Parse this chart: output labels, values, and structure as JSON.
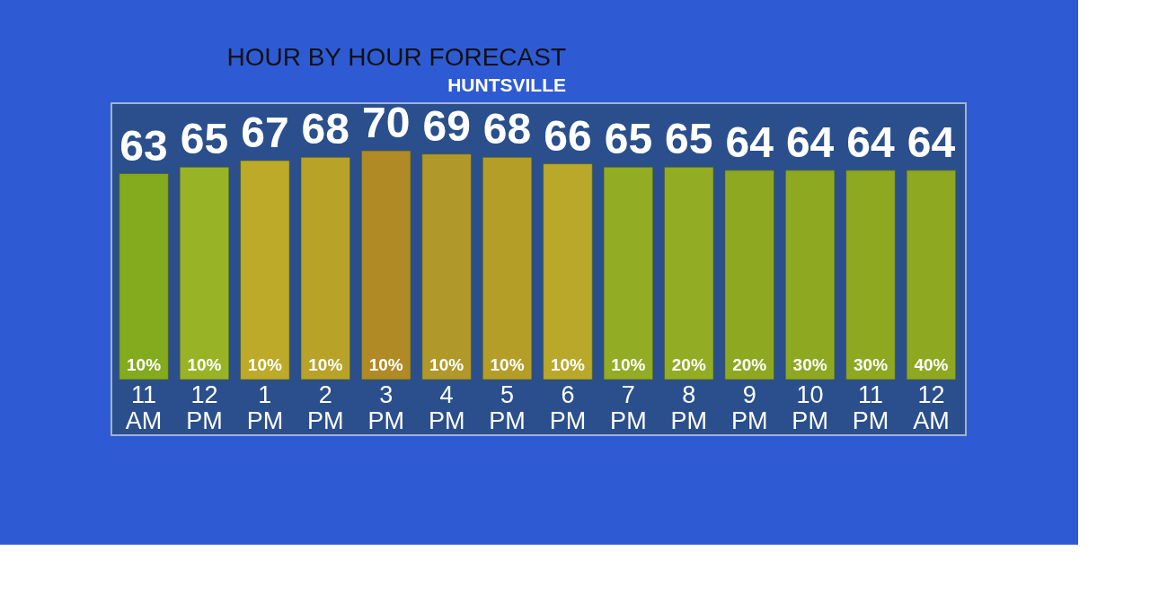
{
  "chart_data": {
    "type": "bar",
    "title": "HOUR BY HOUR FORECAST",
    "subtitle": "HUNTSVILLE",
    "categories": [
      "11 AM",
      "12 PM",
      "1 PM",
      "2 PM",
      "3 PM",
      "4 PM",
      "5 PM",
      "6 PM",
      "7 PM",
      "8 PM",
      "9 PM",
      "10 PM",
      "11 PM",
      "12 AM"
    ],
    "values": [
      63,
      65,
      67,
      68,
      70,
      69,
      68,
      66,
      65,
      65,
      64,
      64,
      64,
      64
    ],
    "colors": [
      "#84aa1e",
      "#98b426",
      "#bcaa28",
      "#b8a228",
      "#b08a24",
      "#b0982a",
      "#b49e28",
      "#baa82a",
      "#92ac24",
      "#92ac24",
      "#8ea822",
      "#8ea822",
      "#8ea822",
      "#8ea822"
    ],
    "data_labels": true,
    "annotations": [
      "10%",
      "10%",
      "10%",
      "10%",
      "10%",
      "10%",
      "10%",
      "10%",
      "10%",
      "20%",
      "20%",
      "30%",
      "30%",
      "40%"
    ]
  }
}
